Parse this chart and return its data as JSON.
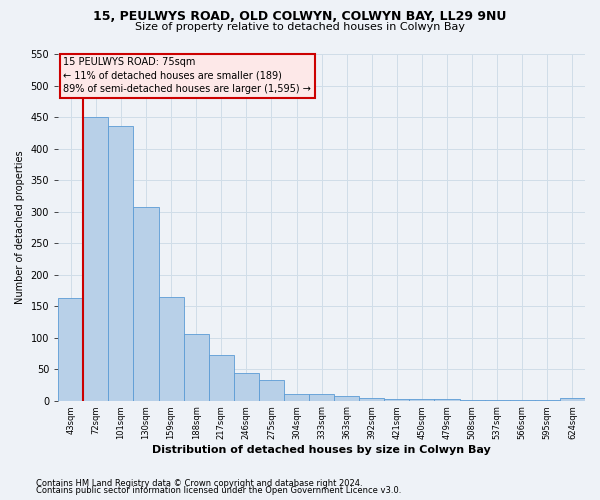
{
  "title1": "15, PEULWYS ROAD, OLD COLWYN, COLWYN BAY, LL29 9NU",
  "title2": "Size of property relative to detached houses in Colwyn Bay",
  "xlabel": "Distribution of detached houses by size in Colwyn Bay",
  "ylabel": "Number of detached properties",
  "categories": [
    "43sqm",
    "72sqm",
    "101sqm",
    "130sqm",
    "159sqm",
    "188sqm",
    "217sqm",
    "246sqm",
    "275sqm",
    "304sqm",
    "333sqm",
    "363sqm",
    "392sqm",
    "421sqm",
    "450sqm",
    "479sqm",
    "508sqm",
    "537sqm",
    "566sqm",
    "595sqm",
    "624sqm"
  ],
  "values": [
    163,
    450,
    435,
    307,
    165,
    106,
    73,
    44,
    33,
    10,
    10,
    8,
    4,
    2,
    2,
    2,
    1,
    1,
    1,
    1,
    4
  ],
  "bar_color": "#b8d0e8",
  "bar_edge_color": "#5b9bd5",
  "grid_color": "#d0dde8",
  "annotation_box_facecolor": "#fde8e8",
  "annotation_border_color": "#cc0000",
  "vline_color": "#cc0000",
  "vline_x_idx": 1,
  "annotation_title": "15 PEULWYS ROAD: 75sqm",
  "annotation_line1": "← 11% of detached houses are smaller (189)",
  "annotation_line2": "89% of semi-detached houses are larger (1,595) →",
  "footnote1": "Contains HM Land Registry data © Crown copyright and database right 2024.",
  "footnote2": "Contains public sector information licensed under the Open Government Licence v3.0.",
  "ylim": [
    0,
    550
  ],
  "yticks": [
    0,
    50,
    100,
    150,
    200,
    250,
    300,
    350,
    400,
    450,
    500,
    550
  ],
  "background_color": "#eef2f7",
  "title1_fontsize": 9,
  "title2_fontsize": 8,
  "xlabel_fontsize": 8,
  "ylabel_fontsize": 7,
  "xtick_fontsize": 6,
  "ytick_fontsize": 7,
  "annot_fontsize": 7,
  "footnote_fontsize": 6
}
